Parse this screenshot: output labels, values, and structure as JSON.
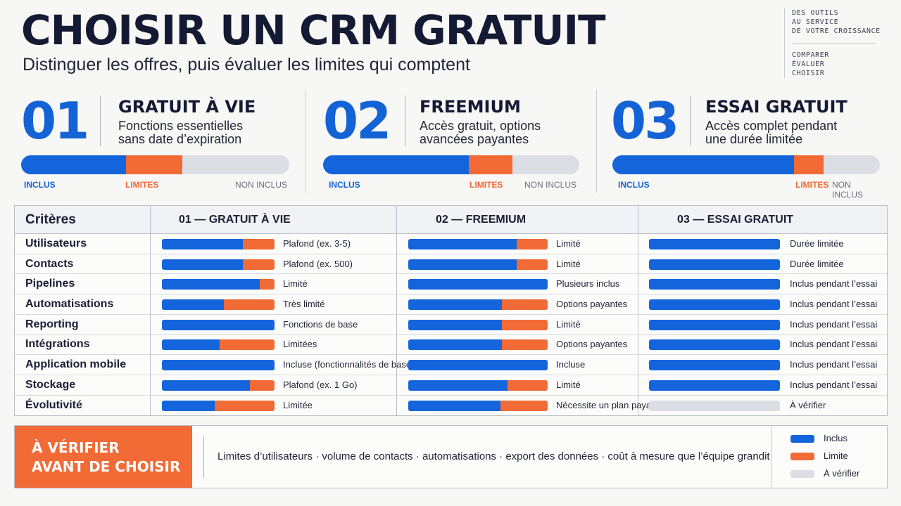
{
  "header": {
    "title": "CHOISIR UN CRM GRATUIT",
    "subtitle": "Distinguer les offres, puis évaluer les limites qui comptent"
  },
  "aside": {
    "lines_top": [
      "DES OUTILS",
      "AU SERVICE",
      "DE VOTRE CROISSANCE"
    ],
    "lines_bottom": [
      "COMPARER",
      "ÉVALUER",
      "CHOISIR"
    ]
  },
  "types": [
    {
      "num": "01",
      "name": "GRATUIT À VIE",
      "desc": [
        "Fonctions essentielles",
        "sans date d’expiration"
      ],
      "included": 0.39,
      "limited": 0.21
    },
    {
      "num": "02",
      "name": "FREEMIUM",
      "desc": [
        "Accès gratuit, options",
        "avancées payantes"
      ],
      "included": 0.57,
      "limited": 0.17
    },
    {
      "num": "03",
      "name": "ESSAI GRATUIT",
      "desc": [
        "Accès complet pendant",
        "une durée limitée"
      ],
      "included": 0.68,
      "limited": 0.11
    }
  ],
  "bar_labels": {
    "included": "INCLUS",
    "limited": "LIMITES",
    "not_included": "NON INCLUS"
  },
  "table": {
    "headers": {
      "criteria": "Critères",
      "col1": "01 — GRATUIT À VIE",
      "col2": "02 — FREEMIUM",
      "col3": "03 — ESSAI GRATUIT"
    },
    "rows": [
      {
        "criterion": "Utilisateurs",
        "c1": {
          "inc": 0.72,
          "lim": 0.28,
          "text": "Plafond (ex. 3-5)"
        },
        "c2": {
          "inc": 0.78,
          "lim": 0.22,
          "text": "Limité"
        },
        "c3": {
          "inc": 1,
          "lim": 0,
          "text": "Durée limitée"
        }
      },
      {
        "criterion": "Contacts",
        "c1": {
          "inc": 0.72,
          "lim": 0.28,
          "text": "Plafond (ex. 500)"
        },
        "c2": {
          "inc": 0.78,
          "lim": 0.22,
          "text": "Limité"
        },
        "c3": {
          "inc": 1,
          "lim": 0,
          "text": "Durée limitée"
        }
      },
      {
        "criterion": "Pipelines",
        "c1": {
          "inc": 0.87,
          "lim": 0.13,
          "text": "Limité"
        },
        "c2": {
          "inc": 1,
          "lim": 0,
          "text": "Plusieurs inclus"
        },
        "c3": {
          "inc": 1,
          "lim": 0,
          "text": "Inclus pendant l’essai"
        }
      },
      {
        "criterion": "Automatisations",
        "c1": {
          "inc": 0.55,
          "lim": 0.45,
          "text": "Très limité"
        },
        "c2": {
          "inc": 0.67,
          "lim": 0.33,
          "text": "Options payantes"
        },
        "c3": {
          "inc": 1,
          "lim": 0,
          "text": "Inclus pendant l’essai"
        }
      },
      {
        "criterion": "Reporting",
        "c1": {
          "inc": 1,
          "lim": 0,
          "text": "Fonctions de base"
        },
        "c2": {
          "inc": 0.67,
          "lim": 0.33,
          "text": "Limité"
        },
        "c3": {
          "inc": 1,
          "lim": 0,
          "text": "Inclus pendant l’essai"
        }
      },
      {
        "criterion": "Intégrations",
        "c1": {
          "inc": 0.51,
          "lim": 0.49,
          "text": "Limitées"
        },
        "c2": {
          "inc": 0.67,
          "lim": 0.33,
          "text": "Options payantes"
        },
        "c3": {
          "inc": 1,
          "lim": 0,
          "text": "Inclus pendant l’essai"
        }
      },
      {
        "criterion": "Application mobile",
        "c1": {
          "inc": 1,
          "lim": 0,
          "text": "Incluse (fonctionnalités de base)"
        },
        "c2": {
          "inc": 1,
          "lim": 0,
          "text": "Incluse"
        },
        "c3": {
          "inc": 1,
          "lim": 0,
          "text": "Inclus pendant l’essai"
        }
      },
      {
        "criterion": "Stockage",
        "c1": {
          "inc": 0.78,
          "lim": 0.22,
          "text": "Plafond (ex. 1 Go)"
        },
        "c2": {
          "inc": 0.71,
          "lim": 0.29,
          "text": "Limité"
        },
        "c3": {
          "inc": 1,
          "lim": 0,
          "text": "Inclus pendant l’essai"
        }
      },
      {
        "criterion": "Évolutivité",
        "c1": {
          "inc": 0.47,
          "lim": 0.53,
          "text": "Limitée"
        },
        "c2": {
          "inc": 0.66,
          "lim": 0.34,
          "text": "Nécessite un plan payant"
        },
        "c3": {
          "inc": 0,
          "lim": 0,
          "verify": true,
          "text": "À vérifier"
        }
      }
    ]
  },
  "footer": {
    "check_label": [
      "À VÉRIFIER",
      "AVANT DE CHOISIR"
    ],
    "checklist": "Limites d’utilisateurs · volume de contacts · automatisations · export des données · coût à mesure que l’équipe grandit",
    "legend": [
      {
        "label": "Inclus",
        "color": "#1465db"
      },
      {
        "label": "Limite",
        "color": "#f26a35"
      },
      {
        "label": "À vérifier",
        "color": "#dcdee5"
      }
    ]
  }
}
